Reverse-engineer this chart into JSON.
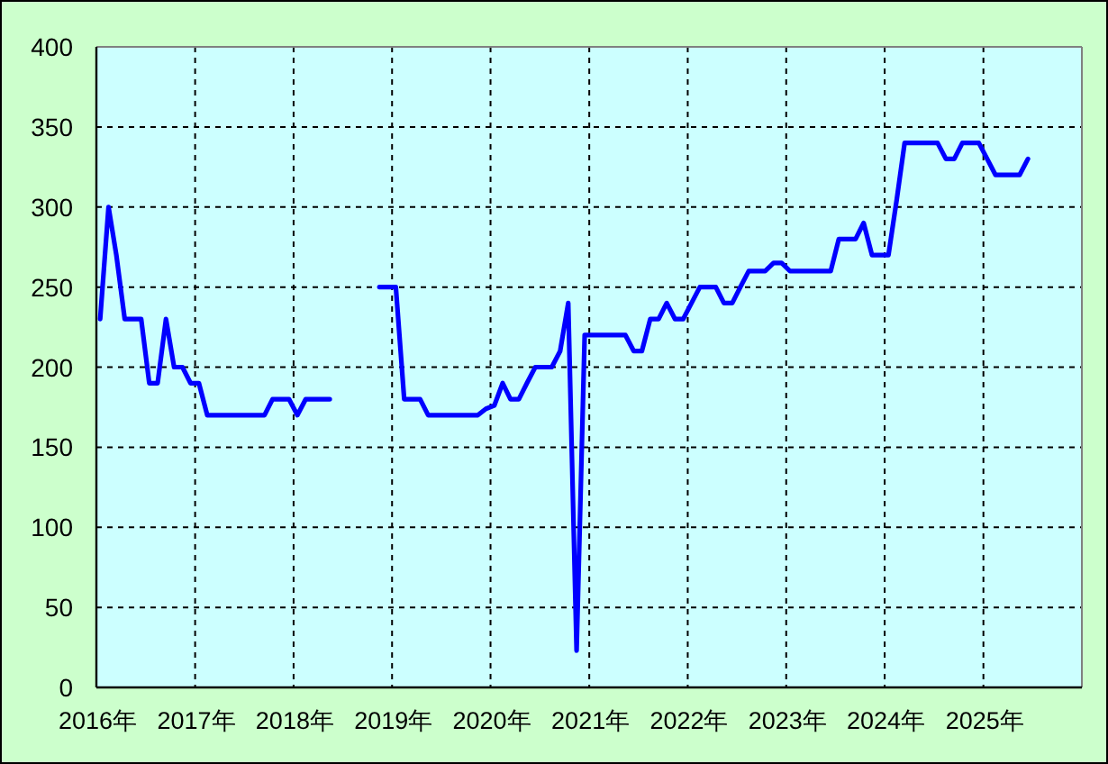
{
  "chart_data": {
    "type": "line",
    "series": [
      {
        "color": "#0000ff",
        "x": [
          "2016-01-15",
          "2016-02-15",
          "2016-03-15",
          "2016-04-15",
          "2016-05-15",
          "2016-06-15",
          "2016-07-15",
          "2016-08-15",
          "2016-09-15",
          "2016-10-15",
          "2016-11-15",
          "2016-12-15",
          "2017-01-15",
          "2017-02-15",
          "2017-03-15",
          "2017-04-15",
          "2017-05-15",
          "2017-06-15",
          "2017-07-15",
          "2017-08-15",
          "2017-09-15",
          "2017-10-15",
          "2017-11-15",
          "2017-12-15",
          "2018-01-15",
          "2018-02-15",
          "2018-03-15",
          "2018-04-15",
          "2018-05-15"
        ],
        "values": [
          230,
          300,
          270,
          230,
          230,
          230,
          190,
          190,
          230,
          200,
          200,
          190,
          190,
          170,
          170,
          170,
          170,
          170,
          170,
          170,
          170,
          180,
          180,
          180,
          170,
          180,
          180,
          180,
          180
        ]
      },
      {
        "color": "#0000ff",
        "x": [
          "2018-11-15",
          "2018-12-15",
          "2019-01-15",
          "2019-02-15",
          "2019-03-15",
          "2019-04-15",
          "2019-05-15",
          "2019-06-15",
          "2019-07-15",
          "2019-08-15",
          "2019-09-15",
          "2019-10-15",
          "2019-11-15",
          "2019-12-15",
          "2020-01-15",
          "2020-02-15",
          "2020-03-15",
          "2020-04-15",
          "2020-05-15",
          "2020-06-15",
          "2020-07-15",
          "2020-08-15",
          "2020-09-15",
          "2020-10-15",
          "2020-11-15",
          "2020-12-15",
          "2021-01-15",
          "2021-02-15",
          "2021-03-15",
          "2021-04-15",
          "2021-05-15",
          "2021-06-15",
          "2021-07-15",
          "2021-08-15",
          "2021-09-15",
          "2021-10-15",
          "2021-11-15",
          "2021-12-15",
          "2022-01-15",
          "2022-02-15",
          "2022-03-15",
          "2022-04-15",
          "2022-05-15",
          "2022-06-15",
          "2022-07-15",
          "2022-08-15",
          "2022-09-15",
          "2022-10-15",
          "2022-11-15",
          "2022-12-15",
          "2023-01-15",
          "2023-02-15",
          "2023-03-15",
          "2023-04-15",
          "2023-05-15",
          "2023-06-15",
          "2023-07-15",
          "2023-08-15",
          "2023-09-15",
          "2023-10-15",
          "2023-11-15",
          "2023-12-15",
          "2024-01-15",
          "2024-02-15",
          "2024-03-15",
          "2024-04-15",
          "2024-05-15",
          "2024-06-15",
          "2024-07-15",
          "2024-08-15",
          "2024-09-15",
          "2024-10-15",
          "2024-11-15",
          "2024-12-15",
          "2025-01-15",
          "2025-02-15",
          "2025-03-15",
          "2025-04-15",
          "2025-05-15",
          "2025-06-15"
        ],
        "values": [
          250,
          250,
          250,
          180,
          180,
          180,
          170,
          170,
          170,
          170,
          170,
          170,
          170,
          174,
          176,
          190,
          180,
          180,
          190,
          200,
          200,
          200,
          210,
          240,
          23,
          220,
          220,
          220,
          220,
          220,
          220,
          210,
          210,
          230,
          230,
          240,
          230,
          230,
          240,
          250,
          250,
          250,
          240,
          240,
          250,
          260,
          260,
          260,
          265,
          265,
          260,
          260,
          260,
          260,
          260,
          260,
          280,
          280,
          280,
          290,
          270,
          270,
          270,
          305,
          340,
          340,
          340,
          340,
          340,
          330,
          330,
          340,
          340,
          340,
          330,
          320,
          320,
          320,
          320,
          330
        ]
      }
    ],
    "xlim": [
      "2016-01-01",
      "2026-01-01"
    ],
    "xticks": [
      {
        "value": "2016",
        "label": "2016年"
      },
      {
        "value": "2017",
        "label": "2017年"
      },
      {
        "value": "2018",
        "label": "2018年"
      },
      {
        "value": "2019",
        "label": "2019年"
      },
      {
        "value": "2020",
        "label": "2020年"
      },
      {
        "value": "2021",
        "label": "2021年"
      },
      {
        "value": "2022",
        "label": "2022年"
      },
      {
        "value": "2023",
        "label": "2023年"
      },
      {
        "value": "2024",
        "label": "2024年"
      },
      {
        "value": "2025",
        "label": "2025年"
      }
    ],
    "ylim": [
      0,
      400
    ],
    "yticks": [
      0,
      50,
      100,
      150,
      200,
      250,
      300,
      350,
      400
    ],
    "grid": true
  }
}
